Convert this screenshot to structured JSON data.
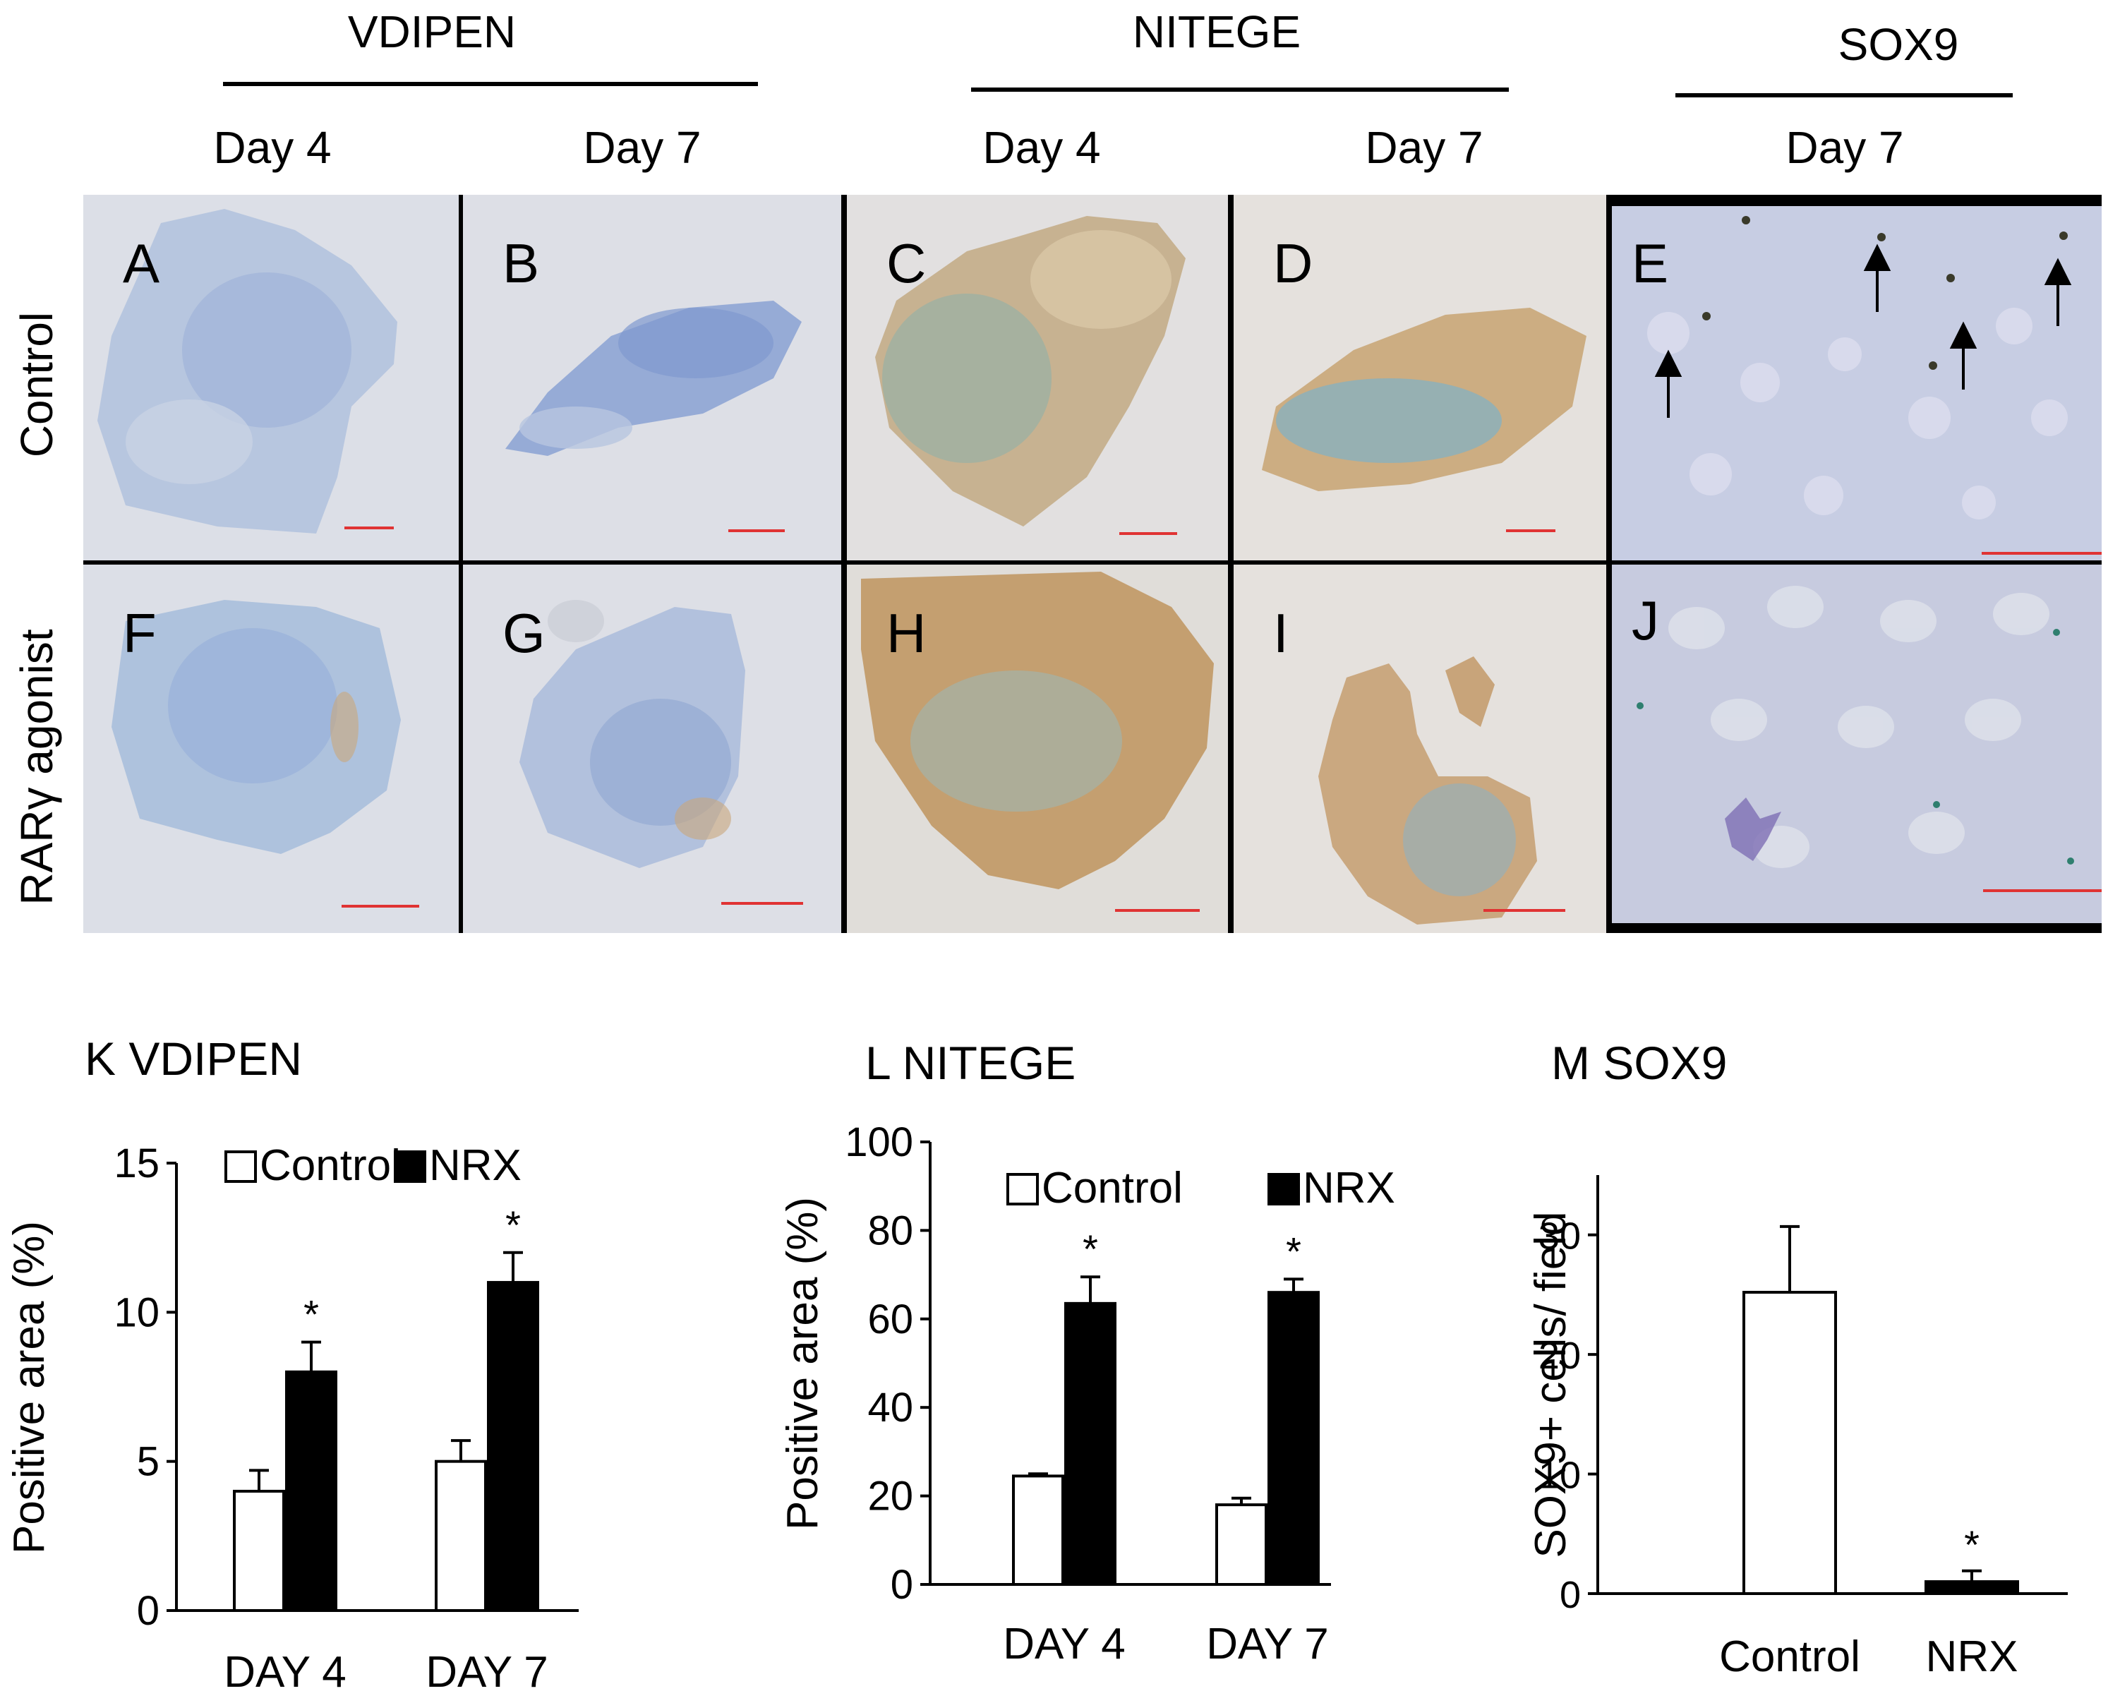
{
  "headers": {
    "vdipen": "VDIPEN",
    "nitege": "NITEGE",
    "sox9": "SOX9",
    "day4_a": "Day 4",
    "day7_a": "Day 7",
    "day4_b": "Day 4",
    "day7_b": "Day 7",
    "day7_c": "Day 7"
  },
  "rows": {
    "control": "Control",
    "agonist": "RARγ agonist"
  },
  "panels": {
    "A": "A",
    "B": "B",
    "C": "C",
    "D": "D",
    "E": "E",
    "F": "F",
    "G": "G",
    "H": "H",
    "I": "I",
    "J": "J"
  },
  "colors": {
    "vdipen_stain": "#a9bfdc",
    "nitege_stain": "#c9a77c",
    "background": "#dfe0e6",
    "scale_bar": "#e03333"
  },
  "chart_data": [
    {
      "type": "bar",
      "title": "K  VDIPEN",
      "ylabel": "Positive area  (%)",
      "categories": [
        "DAY 4",
        "DAY 7"
      ],
      "ylim": [
        0,
        15
      ],
      "yticks": [
        "0",
        "5",
        "10",
        "15"
      ],
      "series": [
        {
          "name": "Control",
          "values": [
            4.0,
            5.0
          ],
          "errors": [
            0.7,
            0.7
          ],
          "fill": "#ffffff"
        },
        {
          "name": "NRX",
          "values": [
            8.0,
            11.0
          ],
          "errors": [
            1.0,
            1.0
          ],
          "fill": "#000000"
        }
      ],
      "significance": [
        "*",
        "*"
      ]
    },
    {
      "type": "bar",
      "title": "L  NITEGE",
      "ylabel": "Positive area  (%)",
      "categories": [
        "DAY 4",
        "DAY 7"
      ],
      "ylim": [
        0,
        100
      ],
      "yticks": [
        "0",
        "20",
        "40",
        "60",
        "80",
        "100"
      ],
      "series": [
        {
          "name": "Control",
          "values": [
            24.5,
            18.0
          ],
          "errors": [
            0.5,
            1.5
          ],
          "fill": "#ffffff"
        },
        {
          "name": "NRX",
          "values": [
            63.5,
            66.0
          ],
          "errors": [
            6.0,
            3.0
          ],
          "fill": "#000000"
        }
      ],
      "significance": [
        "*",
        "*"
      ]
    },
    {
      "type": "bar",
      "title": "M  SOX9",
      "ylabel": "SOX9+ cells/ field",
      "categories": [
        "Control",
        "NRX"
      ],
      "ylim": [
        0,
        35
      ],
      "yticks": [
        "0",
        "10",
        "20",
        "30"
      ],
      "values": [
        25.2,
        1.0
      ],
      "errors": [
        5.5,
        0.9
      ],
      "fills": [
        "#ffffff",
        "#000000"
      ],
      "significance": [
        "",
        "*"
      ]
    }
  ]
}
